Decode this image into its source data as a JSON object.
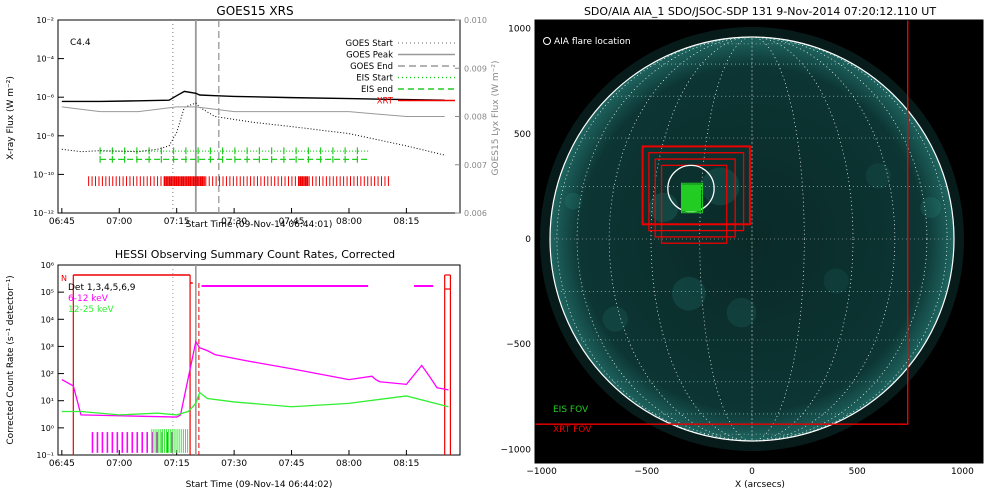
{
  "goes": {
    "title": "GOES15 XRS",
    "class_label": "C4.4",
    "ylabel_left": "X-ray Flux (W m⁻²)",
    "ylabel_right": "GOES15 Lyx Flux (W m⁻²)",
    "xlabel": "Start Time (09-Nov-14 06:44:01)",
    "x_ticks": [
      "06:45",
      "07:00",
      "07:15",
      "07:30",
      "07:45",
      "08:00",
      "08:15"
    ],
    "y_ticks_left": [
      "10⁻²",
      "10⁻⁴",
      "10⁻⁶",
      "10⁻⁸",
      "10⁻¹⁰",
      "10⁻¹²"
    ],
    "y_ticks_right": [
      "0.010",
      "0.009",
      "0.008",
      "0.007",
      "0.006"
    ],
    "legend": [
      {
        "label": "GOES Start",
        "color": "#999999",
        "dash": "1,3"
      },
      {
        "label": "GOES Peak",
        "color": "#999999",
        "dash": ""
      },
      {
        "label": "GOES End",
        "color": "#999999",
        "dash": "7,4"
      },
      {
        "label": "EIS Start",
        "color": "#22cc22",
        "dash": "1,3"
      },
      {
        "label": "EIS end",
        "color": "#22cc22",
        "dash": "6,4"
      },
      {
        "label": "XRT",
        "color": "#ee0000",
        "dash": ""
      }
    ]
  },
  "hessi": {
    "title": "HESSI Observing Summary Count Rates, Corrected",
    "ylabel": "Corrected Count Rate (s⁻¹ detector⁻¹)",
    "xlabel": "Start Time (09-Nov-14 06:44:02)",
    "x_ticks": [
      "06:45",
      "07:00",
      "07:15",
      "07:30",
      "07:45",
      "08:00",
      "08:15"
    ],
    "y_ticks": [
      "10⁶",
      "10⁵",
      "10⁴",
      "10³",
      "10²",
      "10¹",
      "10⁰",
      "10⁻¹"
    ],
    "flag_label": "N",
    "detectors_label": "Det 1,3,4,5,6,9",
    "series_labels": [
      "6-12 keV",
      "12-25 keV"
    ]
  },
  "aia": {
    "title": "SDO/AIA AIA_1 SDO/JSOC-SDP 131  9-Nov-2014 07:20:12.110 UT",
    "flare_label": "AIA flare location",
    "eis_fov_label": "EIS FOV",
    "xrt_fov_label": "XRT FOV",
    "xlabel": "X (arcsecs)",
    "x_ticks": [
      "−1000",
      "−500",
      "0",
      "500",
      "1000"
    ],
    "y_ticks": [
      "1000",
      "500",
      "0",
      "−500",
      "−1000"
    ]
  },
  "colors": {
    "xrt": "#ee0000",
    "eis": "#22cc22",
    "hessi_low": "#ff00ff",
    "hessi_high": "#33ee33",
    "goes": "#000000",
    "goes_lya": "#999999",
    "disk_limb": "#ffffff",
    "aia_bg": "#000000",
    "disk_emission": "#0f3a38"
  },
  "chart_data": [
    {
      "type": "line",
      "title": "GOES15 XRS",
      "xlabel": "Start Time (09-Nov-14 06:44:01)",
      "ylabel": "X-ray Flux (W m⁻²)",
      "x_unit": "minutes after 06:45",
      "ylim": [
        1e-12,
        0.01
      ],
      "y_scale": "log",
      "markers": {
        "goes_start": "07:14",
        "goes_peak": "07:20",
        "goes_end": "07:26"
      },
      "series": [
        {
          "name": "GOES long",
          "x": [
            0,
            10,
            20,
            28,
            30,
            32,
            35,
            36,
            40,
            45,
            60,
            75,
            90,
            100
          ],
          "y": [
            6e-07,
            6e-07,
            6.5e-07,
            7e-07,
            1.2e-06,
            2e-06,
            1.6e-06,
            1.3e-06,
            1.2e-06,
            1.1e-06,
            9.5e-07,
            8.5e-07,
            7.5e-07,
            7e-07
          ]
        },
        {
          "name": "GOES short",
          "x": [
            0,
            5,
            10,
            20,
            25,
            28,
            30,
            32,
            35,
            36,
            40,
            50,
            60,
            75,
            90,
            100
          ],
          "y": [
            2e-09,
            1.5e-09,
            1.7e-09,
            1.5e-09,
            2e-09,
            3e-09,
            1.5e-08,
            3e-07,
            5e-07,
            3e-07,
            1e-07,
            5e-08,
            3e-08,
            1.3e-08,
            3e-09,
            1e-09
          ]
        },
        {
          "name": "Lyman-alpha",
          "y2_scale": [
            0.006,
            0.01
          ],
          "x": [
            0,
            10,
            20,
            30,
            35,
            45,
            60,
            75,
            90,
            100
          ],
          "y": [
            0.0082,
            0.0081,
            0.0081,
            0.0082,
            0.0082,
            0.0081,
            0.0081,
            0.0081,
            0.008,
            0.008
          ]
        }
      ]
    },
    {
      "type": "line",
      "title": "HESSI Observing Summary Count Rates, Corrected",
      "xlabel": "Start Time (09-Nov-14 06:44:02)",
      "ylim": [
        0.1,
        1000000.0
      ],
      "y_scale": "log",
      "series": [
        {
          "name": "6-12 keV",
          "x": [
            0,
            3,
            5,
            30,
            31,
            35,
            36,
            38,
            40,
            48,
            60,
            75,
            81,
            82,
            83,
            90,
            94,
            96,
            98,
            101
          ],
          "y": [
            60,
            35,
            3,
            2.5,
            3,
            1500,
            900,
            700,
            500,
            300,
            150,
            60,
            80,
            60,
            50,
            40,
            200,
            80,
            30,
            25
          ]
        },
        {
          "name": "12-25 keV",
          "x": [
            0,
            5,
            15,
            25,
            30,
            33,
            35,
            36,
            38,
            45,
            60,
            75,
            90,
            101
          ],
          "y": [
            4,
            4,
            3,
            3.5,
            3,
            4,
            8,
            20,
            12,
            9,
            6,
            8,
            15,
            6
          ]
        }
      ]
    }
  ]
}
